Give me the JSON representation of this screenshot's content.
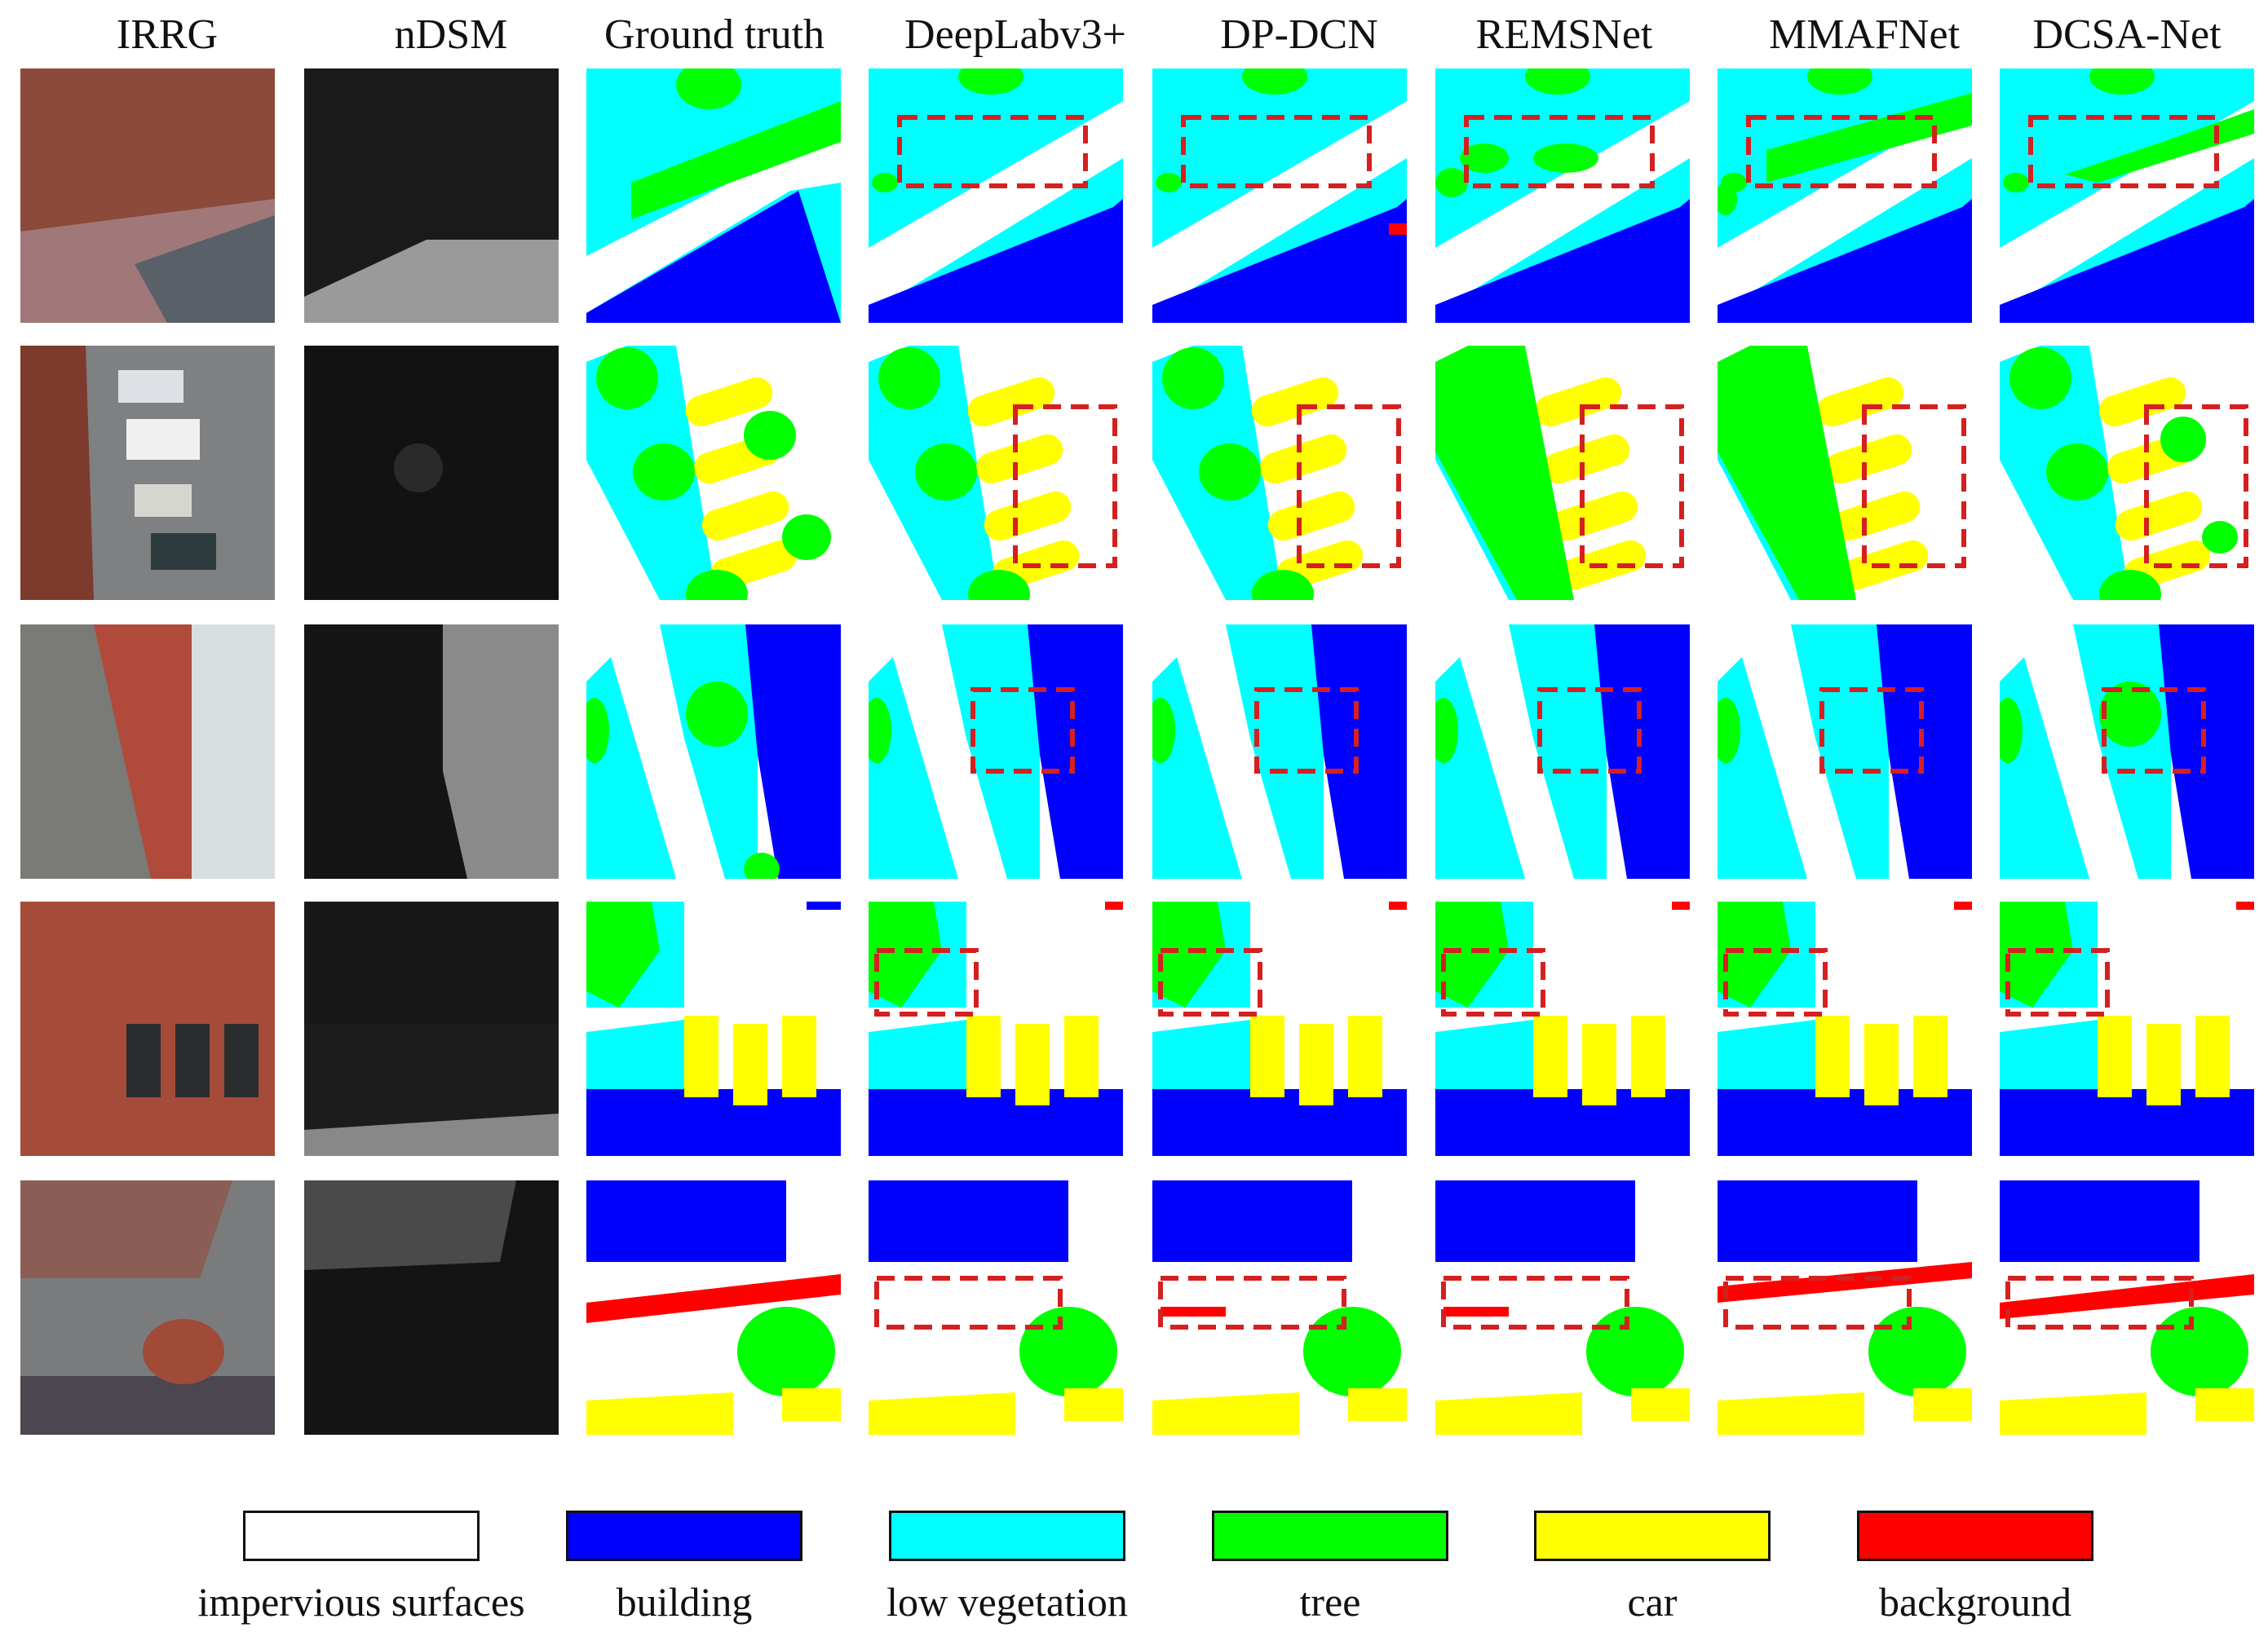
{
  "columns": [
    "IRRG",
    "nDSM",
    "Ground truth",
    "DeepLabv3+",
    "DP-DCN",
    "REMSNet",
    "MMAFNet",
    "DCSA-Net"
  ],
  "legend": [
    {
      "label": "impervious surfaces",
      "color": "#ffffff"
    },
    {
      "label": "building",
      "color": "#0000ff"
    },
    {
      "label": "low vegetation",
      "color": "#00ffff"
    },
    {
      "label": "tree",
      "color": "#00ff00"
    },
    {
      "label": "car",
      "color": "#ffff00"
    },
    {
      "label": "background",
      "color": "#ff0000"
    }
  ],
  "highlight_color": "#d42020",
  "rows": 5
}
